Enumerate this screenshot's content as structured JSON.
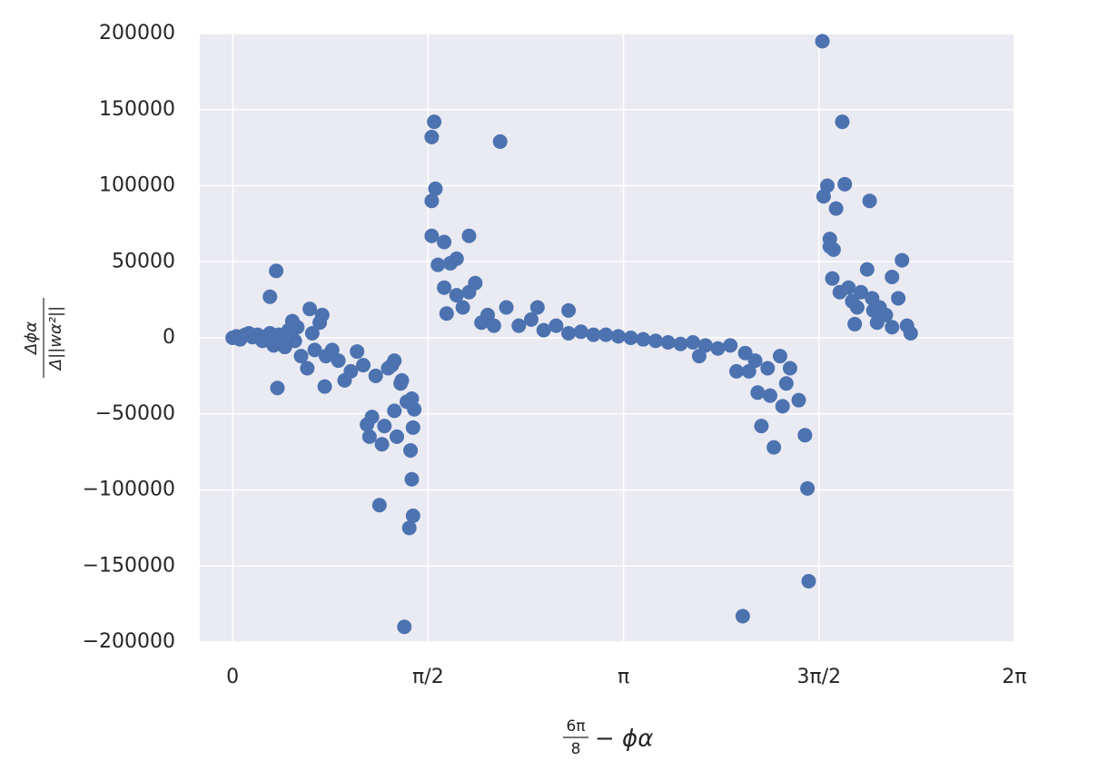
{
  "chart_data": {
    "type": "scatter",
    "xlabel": {
      "numerator": "6π",
      "denominator": "8",
      "rest": "− ϕα"
    },
    "ylabel": {
      "numerator": "Δϕα",
      "denominator": "Δ||wα²||"
    },
    "color": "#4c72b0",
    "grid": true,
    "xlim": [
      -0.264,
      6.2832
    ],
    "ylim": [
      -200000,
      200000
    ],
    "xticks": [
      0,
      {
        "value": 1.5708,
        "label": "π/2"
      },
      {
        "value": 3.1416,
        "label": "π"
      },
      {
        "value": 4.7124,
        "label": "3π/2"
      },
      {
        "value": 6.2832,
        "label": "2π"
      }
    ],
    "yticks": [
      {
        "value": -200000,
        "label": "−200000"
      },
      {
        "value": -150000,
        "label": "−150000"
      },
      {
        "value": -100000,
        "label": "−100000"
      },
      {
        "value": -50000,
        "label": "−50000"
      },
      0,
      50000,
      100000,
      150000,
      200000
    ],
    "x": [
      0.0,
      0.03,
      0.06,
      0.1,
      0.13,
      0.16,
      0.2,
      0.24,
      0.27,
      0.3,
      0.33,
      0.3,
      0.35,
      0.36,
      0.37,
      0.4,
      0.42,
      0.45,
      0.48,
      0.5,
      0.52,
      0.55,
      0.6,
      0.62,
      0.64,
      0.66,
      0.7,
      0.72,
      0.74,
      0.75,
      0.8,
      0.85,
      0.9,
      0.95,
      1.0,
      1.05,
      1.08,
      1.1,
      1.12,
      1.15,
      1.18,
      1.2,
      1.22,
      1.25,
      1.28,
      1.3,
      1.32,
      1.35,
      1.38,
      1.4,
      1.42,
      1.43,
      1.44,
      1.45,
      1.45,
      1.46,
      1.44,
      1.36,
      1.3,
      1.6,
      1.62,
      1.63,
      1.6,
      1.6,
      1.65,
      1.7,
      1.75,
      1.8,
      1.7,
      1.72,
      1.8,
      1.85,
      1.9,
      1.95,
      1.9,
      2.0,
      2.05,
      2.1,
      2.15,
      2.2,
      2.3,
      2.4,
      2.45,
      2.5,
      2.6,
      2.7,
      2.8,
      2.7,
      2.9,
      3.0,
      3.1,
      3.2,
      3.3,
      3.4,
      3.5,
      3.6,
      3.7,
      3.75,
      3.8,
      3.9,
      4.0,
      4.05,
      4.1,
      4.12,
      4.15,
      4.2,
      4.22,
      4.25,
      4.3,
      4.32,
      4.35,
      4.4,
      4.42,
      4.45,
      4.48,
      4.55,
      4.6,
      4.62,
      4.63,
      4.74,
      4.75,
      4.78,
      4.8,
      4.8,
      4.83,
      4.85,
      4.82,
      4.88,
      4.9,
      4.92,
      4.95,
      4.98,
      5.0,
      5.02,
      5.05,
      5.1,
      5.12,
      5.14,
      5.18,
      5.2,
      5.25,
      5.3,
      5.35,
      5.38,
      5.42,
      5.45,
      5.3,
      5.15
    ],
    "y": [
      0,
      1000,
      -1000,
      2000,
      3000,
      500,
      2000,
      -2000,
      1000,
      3000,
      -5000,
      27000,
      44000,
      -33000,
      2000,
      -3000,
      -6000,
      5000,
      11000,
      -2000,
      7000,
      -12000,
      -20000,
      19000,
      3000,
      -8000,
      10000,
      15000,
      -32000,
      -12000,
      -8000,
      -15000,
      -28000,
      -22000,
      -9000,
      -18000,
      -57000,
      -65000,
      -52000,
      -25000,
      -110000,
      -70000,
      -58000,
      -20000,
      -18000,
      -48000,
      -65000,
      -30000,
      -190000,
      -42000,
      -125000,
      -74000,
      -93000,
      -117000,
      -59000,
      -47000,
      -40000,
      -28000,
      -15000,
      132000,
      142000,
      98000,
      90000,
      67000,
      48000,
      63000,
      49000,
      52000,
      33000,
      16000,
      28000,
      20000,
      30000,
      36000,
      67000,
      10000,
      15000,
      8000,
      129000,
      20000,
      8000,
      12000,
      20000,
      5000,
      8000,
      3000,
      4000,
      18000,
      2000,
      2000,
      1000,
      0,
      -1000,
      -2000,
      -3000,
      -4000,
      -3000,
      -12000,
      -5000,
      -7000,
      -5000,
      -22000,
      -183000,
      -10000,
      -22000,
      -15000,
      -36000,
      -58000,
      -20000,
      -38000,
      -72000,
      -12000,
      -45000,
      -30000,
      -20000,
      -41000,
      -64000,
      -99000,
      -160000,
      195000,
      93000,
      100000,
      60000,
      65000,
      58000,
      85000,
      39000,
      30000,
      142000,
      101000,
      33000,
      24000,
      9000,
      20000,
      30000,
      45000,
      90000,
      26000,
      10000,
      20000,
      15000,
      40000,
      26000,
      51000,
      8000,
      3000,
      7000,
      18000
    ]
  }
}
